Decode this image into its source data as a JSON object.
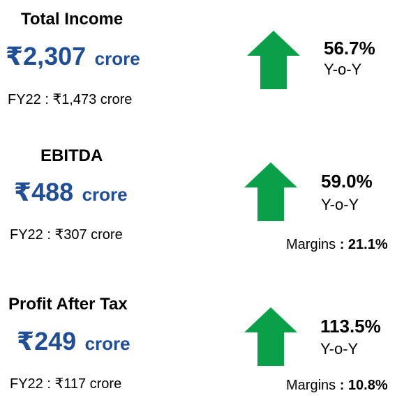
{
  "arrow_color": "#0aa04a",
  "value_color": "#1f4e96",
  "metrics": [
    {
      "title": "Total Income",
      "currency": "₹",
      "value": "2,307",
      "unit": "crore",
      "previous": "FY22 : ₹1,473 crore",
      "change": "56.7%",
      "change_label": "Y-o-Y",
      "trend_icon": "up-arrow"
    },
    {
      "title": "EBITDA",
      "currency": "₹",
      "value": "488",
      "unit": "crore",
      "previous": "FY22 : ₹307 crore",
      "change": "59.0%",
      "change_label": "Y-o-Y",
      "margin_label": "Margins",
      "margin_sep": " : ",
      "margin_value": "21.1%",
      "trend_icon": "up-arrow"
    },
    {
      "title": "Profit After Tax",
      "currency": "₹",
      "value": "249",
      "unit": "crore",
      "previous": "FY22 : ₹117 crore",
      "change": "113.5%",
      "change_label": "Y-o-Y",
      "margin_label": "Margins",
      "margin_sep": " : ",
      "margin_value": "10.8%",
      "trend_icon": "up-arrow"
    }
  ]
}
